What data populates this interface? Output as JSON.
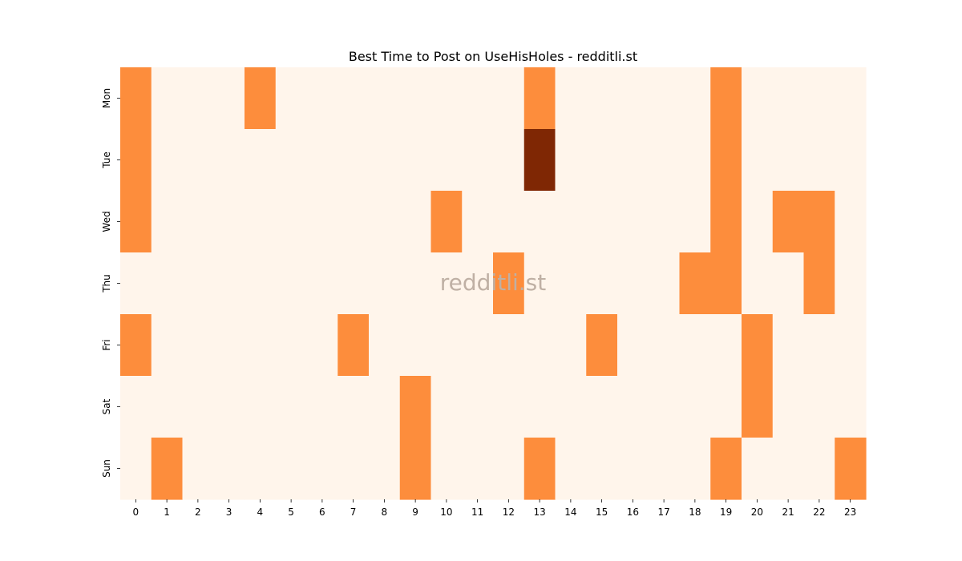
{
  "chart_data": {
    "type": "heatmap",
    "title": "Best Time to Post on UseHisHoles - redditli.st",
    "watermark": "redditli.st",
    "xlabel": "",
    "ylabel": "",
    "x_categories": [
      "0",
      "1",
      "2",
      "3",
      "4",
      "5",
      "6",
      "7",
      "8",
      "9",
      "10",
      "11",
      "12",
      "13",
      "14",
      "15",
      "16",
      "17",
      "18",
      "19",
      "20",
      "21",
      "22",
      "23"
    ],
    "y_categories": [
      "Mon",
      "Tue",
      "Wed",
      "Thu",
      "Fri",
      "Sat",
      "Sun"
    ],
    "values": [
      [
        1,
        0,
        0,
        0,
        1,
        0,
        0,
        0,
        0,
        0,
        0,
        0,
        0,
        1,
        0,
        0,
        0,
        0,
        0,
        1,
        0,
        0,
        0,
        0
      ],
      [
        1,
        0,
        0,
        0,
        0,
        0,
        0,
        0,
        0,
        0,
        0,
        0,
        0,
        2,
        0,
        0,
        0,
        0,
        0,
        1,
        0,
        0,
        0,
        0
      ],
      [
        1,
        0,
        0,
        0,
        0,
        0,
        0,
        0,
        0,
        0,
        1,
        0,
        0,
        0,
        0,
        0,
        0,
        0,
        0,
        1,
        0,
        1,
        1,
        0
      ],
      [
        0,
        0,
        0,
        0,
        0,
        0,
        0,
        0,
        0,
        0,
        0,
        0,
        1,
        0,
        0,
        0,
        0,
        0,
        1,
        1,
        0,
        0,
        1,
        0
      ],
      [
        1,
        0,
        0,
        0,
        0,
        0,
        0,
        1,
        0,
        0,
        0,
        0,
        0,
        0,
        0,
        1,
        0,
        0,
        0,
        0,
        1,
        0,
        0,
        0
      ],
      [
        0,
        0,
        0,
        0,
        0,
        0,
        0,
        0,
        0,
        1,
        0,
        0,
        0,
        0,
        0,
        0,
        0,
        0,
        0,
        0,
        1,
        0,
        0,
        0
      ],
      [
        0,
        1,
        0,
        0,
        0,
        0,
        0,
        0,
        0,
        1,
        0,
        0,
        0,
        1,
        0,
        0,
        0,
        0,
        0,
        1,
        0,
        0,
        0,
        1
      ]
    ],
    "colormap": [
      "#fff5eb",
      "#fd8d3c",
      "#7f2704"
    ],
    "grid": false,
    "colorbar": false
  }
}
